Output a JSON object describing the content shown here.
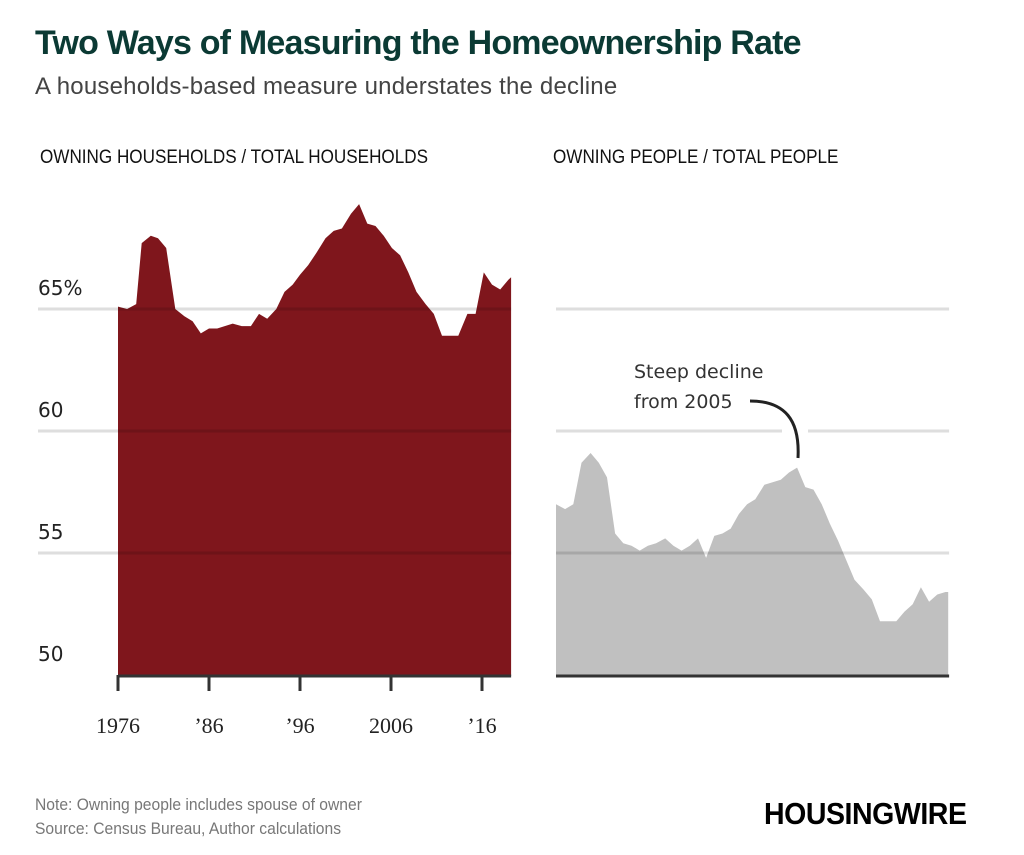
{
  "header": {
    "title": "Two Ways of Measuring the Homeownership Rate",
    "subtitle": "A households-based measure understates the decline"
  },
  "footer": {
    "note": "Note: Owning people includes spouse of owner",
    "source": "Source: Census Bureau, Author calculations",
    "logo": "HOUSINGWIRE"
  },
  "chart_data": [
    {
      "type": "area",
      "title": "OWNING HOUSEHOLDS / TOTAL HOUSEHOLDS",
      "color": "#7f161c",
      "ylim": [
        50,
        69.5
      ],
      "xlim": [
        1976,
        2019.2
      ],
      "yticks": [
        50,
        55,
        60,
        65
      ],
      "ytick_labels": [
        "50",
        "55",
        "60",
        "65%"
      ],
      "xticks": [
        1976,
        1986,
        1996,
        2006,
        2016
      ],
      "xtick_labels": [
        "1976",
        "’86",
        "’96",
        "2006",
        "’16"
      ],
      "grid": true,
      "x": [
        1976,
        1977,
        1978,
        1978.6,
        1979.6,
        1980.4,
        1981.3,
        1982.3,
        1983.3,
        1984.2,
        1985.1,
        1986,
        1986.9,
        1988.6,
        1989.6,
        1990.6,
        1991.5,
        1992.4,
        1993.4,
        1994.3,
        1995.2,
        1996,
        1996.9,
        1997.8,
        1998.8,
        1999.7,
        2000.6,
        2001.6,
        2002.5,
        2003.4,
        2004.3,
        2005.2,
        2006.1,
        2007,
        2007.9,
        2008.8,
        2009.8,
        2010.7,
        2011.6,
        2012.5,
        2013.4,
        2014.4,
        2015.3,
        2016.2,
        2017.1,
        2018,
        2018.9,
        2019.2
      ],
      "y": [
        65.1,
        65.0,
        65.2,
        67.7,
        68.0,
        67.9,
        67.5,
        65.0,
        64.7,
        64.5,
        64.0,
        64.2,
        64.2,
        64.4,
        64.3,
        64.3,
        64.8,
        64.6,
        65.0,
        65.7,
        66.0,
        66.4,
        66.8,
        67.3,
        67.9,
        68.2,
        68.3,
        68.9,
        69.3,
        68.5,
        68.4,
        68.0,
        67.5,
        67.2,
        66.5,
        65.7,
        65.2,
        64.8,
        63.9,
        63.9,
        63.9,
        64.8,
        64.8,
        66.5,
        66.0,
        65.8,
        66.2,
        66.3
      ]
    },
    {
      "type": "area",
      "title": "OWNING PEOPLE / TOTAL PEOPLE",
      "color": "#c0c0c0",
      "ylim": [
        50,
        69.5
      ],
      "xlim": [
        1976,
        2019.2
      ],
      "grid": true,
      "annotation": {
        "line1": "Steep decline",
        "line2": "from 2005"
      },
      "x": [
        1976,
        1977,
        1977.9,
        1978.8,
        1979.8,
        1980.7,
        1981.6,
        1982.5,
        1983.4,
        1984.3,
        1985.2,
        1986.1,
        1987,
        1988,
        1988.9,
        1989.8,
        1990.7,
        1991.6,
        1992.5,
        1993.4,
        1994.3,
        1995.2,
        1996.1,
        1997,
        1997.9,
        1998.9,
        1999.8,
        2000.7,
        2001.6,
        2002.5,
        2003.4,
        2004.3,
        2005.2,
        2006.1,
        2007,
        2007.9,
        2008.8,
        2009.8,
        2010.7,
        2011.6,
        2012.5,
        2013.4,
        2014.3,
        2015.2,
        2016.1,
        2017,
        2017.9,
        2018.8,
        2019.1
      ],
      "y": [
        57.0,
        56.8,
        57.0,
        58.7,
        59.1,
        58.7,
        58.1,
        55.8,
        55.4,
        55.3,
        55.1,
        55.3,
        55.4,
        55.6,
        55.3,
        55.1,
        55.3,
        55.6,
        54.8,
        55.7,
        55.8,
        56.0,
        56.6,
        57.0,
        57.2,
        57.8,
        57.9,
        58.0,
        58.3,
        58.5,
        57.7,
        57.6,
        57.0,
        56.2,
        55.5,
        54.7,
        53.9,
        53.5,
        53.1,
        52.2,
        52.2,
        52.2,
        52.6,
        52.9,
        53.6,
        53.0,
        53.3,
        53.4,
        53.4
      ]
    }
  ]
}
